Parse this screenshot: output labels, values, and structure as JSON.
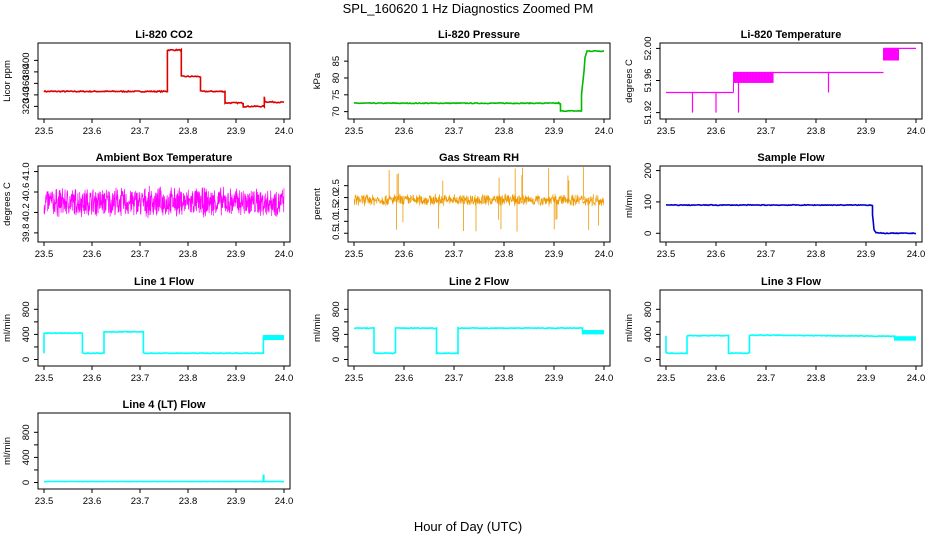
{
  "figure": {
    "title": "SPL_160620  1 Hz Diagnostics Zoomed PM",
    "xlabel": "Hour of Day (UTC)"
  },
  "chart_data": [
    {
      "type": "line",
      "title": "Li-820 CO2",
      "ylabel": "Licor ppm",
      "color": "#dd0000",
      "xlim": [
        23.5,
        24.0
      ],
      "ylim": [
        305,
        425
      ],
      "xticks": [
        23.5,
        23.6,
        23.7,
        23.8,
        23.9,
        24.0
      ],
      "xtick_labels": [
        "23.5",
        "23.6",
        "23.7",
        "23.8",
        "23.9",
        "24.0"
      ],
      "yticks": [
        320,
        340,
        360,
        380,
        400
      ],
      "ytick_labels": [
        "320",
        "340",
        "360",
        "380",
        "400"
      ],
      "x": [
        23.5,
        23.757,
        23.757,
        23.786,
        23.786,
        23.826,
        23.826,
        23.877,
        23.877,
        23.915,
        23.915,
        23.959,
        23.959,
        23.96,
        23.96,
        24.0
      ],
      "y": [
        346,
        346,
        418,
        418,
        372,
        372,
        346,
        346,
        326,
        326,
        320,
        320,
        336,
        328,
        328,
        327
      ],
      "noise": 1.0
    },
    {
      "type": "line",
      "title": "Li-820 Pressure",
      "ylabel": "kPa",
      "color": "#00bb00",
      "xlim": [
        23.5,
        24.0
      ],
      "ylim": [
        69,
        89.5
      ],
      "xticks": [
        23.5,
        23.6,
        23.7,
        23.8,
        23.9,
        24.0
      ],
      "xtick_labels": [
        "23.5",
        "23.6",
        "23.7",
        "23.8",
        "23.9",
        "24.0"
      ],
      "yticks": [
        70,
        75,
        80,
        85
      ],
      "ytick_labels": [
        "70",
        "75",
        "80",
        "85"
      ],
      "x": [
        23.5,
        23.82,
        23.91,
        23.913,
        23.913,
        23.955,
        23.955,
        23.96,
        23.962,
        23.966,
        23.97,
        24.0
      ],
      "y": [
        72.5,
        72.5,
        72.5,
        72.2,
        70.2,
        70.2,
        75,
        82,
        86,
        88,
        88,
        88
      ],
      "noise": 0.12
    },
    {
      "type": "step-spikes",
      "title": "Li-820 Temperature",
      "ylabel": "degrees C",
      "color": "#ff00ff",
      "xlim": [
        23.5,
        24.0
      ],
      "ylim": [
        51.917,
        52.003
      ],
      "xticks": [
        23.5,
        23.6,
        23.7,
        23.8,
        23.9,
        24.0
      ],
      "xtick_labels": [
        "23.5",
        "23.6",
        "23.7",
        "23.8",
        "23.9",
        "24.0"
      ],
      "yticks": [
        51.92,
        51.96,
        52.0
      ],
      "ytick_labels": [
        "51.92",
        "51.96",
        "52.00"
      ],
      "levels": [
        [
          23.5,
          23.635,
          51.945
        ],
        [
          23.635,
          23.935,
          51.97
        ],
        [
          23.935,
          24.0,
          52.0
        ]
      ],
      "high_band": [
        23.635,
        23.715,
        51.97,
        51.957
      ],
      "low_spikes": [
        [
          23.553,
          51.92
        ],
        [
          23.6,
          51.92
        ],
        [
          23.645,
          51.92
        ],
        [
          23.825,
          51.945
        ]
      ],
      "top_band": [
        23.935,
        23.965,
        51.985,
        52.0
      ]
    },
    {
      "type": "line",
      "title": "Ambient Box Temperature",
      "ylabel": "degrees C",
      "color": "#ff00ff",
      "xlim": [
        23.5,
        24.0
      ],
      "ylim": [
        39.7,
        41.05
      ],
      "xticks": [
        23.5,
        23.6,
        23.7,
        23.8,
        23.9,
        24.0
      ],
      "xtick_labels": [
        "23.5",
        "23.6",
        "23.7",
        "23.8",
        "23.9",
        "24.0"
      ],
      "yticks": [
        39.8,
        40.2,
        40.6,
        41.0
      ],
      "ytick_labels": [
        "39.8",
        "40.2",
        "40.6",
        "41.0"
      ],
      "x": [
        23.5,
        24.0
      ],
      "y": [
        40.4,
        40.4
      ],
      "noise": 0.32,
      "dense": true
    },
    {
      "type": "scatter",
      "title": "Gas Stream RH",
      "ylabel": "percent",
      "color": "#ee9900",
      "xlim": [
        23.5,
        24.0
      ],
      "ylim": [
        0.3,
        3.2
      ],
      "xticks": [
        23.5,
        23.6,
        23.7,
        23.8,
        23.9,
        24.0
      ],
      "xtick_labels": [
        "23.5",
        "23.6",
        "23.7",
        "23.8",
        "23.9",
        "24.0"
      ],
      "yticks": [
        0.5,
        1.0,
        1.5,
        2.0,
        2.5
      ],
      "ytick_labels": [
        "0.5",
        "1.0",
        "1.5",
        "2.0",
        "2.5"
      ],
      "x": [
        23.5,
        24.0
      ],
      "y": [
        1.9,
        1.9
      ],
      "noise": 0.28,
      "dense": true
    },
    {
      "type": "line",
      "title": "Sample Flow",
      "ylabel": "ml/min",
      "color": "#0000cc",
      "xlim": [
        23.5,
        24.0
      ],
      "ylim": [
        -15,
        205
      ],
      "xticks": [
        23.5,
        23.6,
        23.7,
        23.8,
        23.9,
        24.0
      ],
      "xtick_labels": [
        "23.5",
        "23.6",
        "23.7",
        "23.8",
        "23.9",
        "24.0"
      ],
      "yticks": [
        0,
        100,
        200
      ],
      "ytick_labels": [
        "0",
        "100",
        "200"
      ],
      "x": [
        23.5,
        23.913,
        23.913,
        23.916,
        23.92,
        23.93,
        24.0
      ],
      "y": [
        90,
        90,
        60,
        12,
        2,
        0,
        0
      ],
      "noise": 1.2
    },
    {
      "type": "line",
      "title": "Line 1 Flow",
      "ylabel": "ml/min",
      "color": "#00ffff",
      "xlim": [
        23.5,
        24.0
      ],
      "ylim": [
        -40,
        1060
      ],
      "xticks": [
        23.5,
        23.6,
        23.7,
        23.8,
        23.9,
        24.0
      ],
      "xtick_labels": [
        "23.5",
        "23.6",
        "23.7",
        "23.8",
        "23.9",
        "24.0"
      ],
      "yticks": [
        0,
        200,
        400,
        600,
        800
      ],
      "ytick_labels": [
        "0",
        "400",
        "800"
      ],
      "yticks_labeled": [
        0,
        400,
        800
      ],
      "x": [
        23.5,
        23.5,
        23.5,
        23.58,
        23.58,
        23.625,
        23.625,
        23.707,
        23.707,
        23.957,
        23.957,
        24.0
      ],
      "y": [
        100,
        420,
        420,
        420,
        100,
        100,
        440,
        440,
        100,
        100,
        350,
        350
      ],
      "noise": 5,
      "band_after": [
        23.957,
        24.0,
        310,
        390
      ]
    },
    {
      "type": "line",
      "title": "Line 2 Flow",
      "ylabel": "ml/min",
      "color": "#00ffff",
      "xlim": [
        23.5,
        24.0
      ],
      "ylim": [
        -40,
        1060
      ],
      "xticks": [
        23.5,
        23.6,
        23.7,
        23.8,
        23.9,
        24.0
      ],
      "xtick_labels": [
        "23.5",
        "23.6",
        "23.7",
        "23.8",
        "23.9",
        "24.0"
      ],
      "yticks": [
        0,
        200,
        400,
        600,
        800
      ],
      "yticks_labeled": [
        0,
        400,
        800
      ],
      "ytick_labels": [
        "0",
        "400",
        "800"
      ],
      "x": [
        23.5,
        23.54,
        23.54,
        23.583,
        23.583,
        23.665,
        23.665,
        23.708,
        23.708,
        23.957,
        23.957,
        24.0
      ],
      "y": [
        500,
        500,
        100,
        100,
        500,
        500,
        100,
        100,
        500,
        500,
        430,
        430
      ],
      "noise": 6,
      "band_after": [
        23.957,
        24.0,
        400,
        470
      ]
    },
    {
      "type": "line",
      "title": "Line 3 Flow",
      "ylabel": "ml/min",
      "color": "#00ffff",
      "xlim": [
        23.5,
        24.0
      ],
      "ylim": [
        -40,
        1060
      ],
      "xticks": [
        23.5,
        23.6,
        23.7,
        23.8,
        23.9,
        24.0
      ],
      "xtick_labels": [
        "23.5",
        "23.6",
        "23.7",
        "23.8",
        "23.9",
        "24.0"
      ],
      "yticks": [
        0,
        200,
        400,
        600,
        800
      ],
      "yticks_labeled": [
        0,
        400,
        800
      ],
      "ytick_labels": [
        "0",
        "400",
        "800"
      ],
      "x": [
        23.5,
        23.5,
        23.5,
        23.542,
        23.542,
        23.625,
        23.625,
        23.667,
        23.667,
        23.957,
        23.957,
        24.0
      ],
      "y": [
        380,
        380,
        100,
        100,
        380,
        380,
        100,
        100,
        390,
        370,
        340,
        340
      ],
      "noise": 5,
      "band_after": [
        23.957,
        24.0,
        300,
        370
      ]
    },
    {
      "type": "line",
      "title": "Line 4 (LT) Flow",
      "ylabel": "ml/min",
      "color": "#00ffff",
      "xlim": [
        23.5,
        24.0
      ],
      "ylim": [
        -40,
        1060
      ],
      "xticks": [
        23.5,
        23.6,
        23.7,
        23.8,
        23.9,
        24.0
      ],
      "xtick_labels": [
        "23.5",
        "23.6",
        "23.7",
        "23.8",
        "23.9",
        "24.0"
      ],
      "yticks": [
        0,
        200,
        400,
        600,
        800
      ],
      "yticks_labeled": [
        0,
        400,
        800
      ],
      "ytick_labels": [
        "0",
        "400",
        "800"
      ],
      "x": [
        23.5,
        23.957,
        23.957,
        23.958,
        23.958,
        24.0
      ],
      "y": [
        15,
        15,
        110,
        110,
        15,
        15
      ],
      "noise": 2
    }
  ]
}
